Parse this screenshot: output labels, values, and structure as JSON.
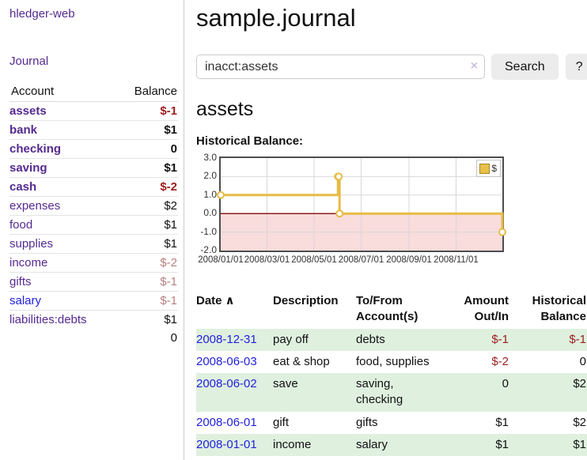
{
  "app": {
    "brand": "hledger-web"
  },
  "sidebar": {
    "nav": [
      {
        "label": "Journal"
      }
    ],
    "table_headers": {
      "account": "Account",
      "balance": "Balance"
    },
    "accounts": [
      {
        "label": "assets",
        "level": 1,
        "bold": true,
        "link": "purple",
        "balance": "$-1",
        "balance_style": "negative"
      },
      {
        "label": "bank",
        "level": 2,
        "bold": true,
        "link": "purple",
        "balance": "$1",
        "balance_style": "normal"
      },
      {
        "label": "checking",
        "level": 3,
        "bold": true,
        "link": "purple",
        "balance": "0",
        "balance_style": "normal"
      },
      {
        "label": "saving",
        "level": 3,
        "bold": true,
        "link": "purple",
        "balance": "$1",
        "balance_style": "normal"
      },
      {
        "label": "cash",
        "level": 2,
        "bold": true,
        "link": "purple",
        "balance": "$-2",
        "balance_style": "negative"
      },
      {
        "label": "expenses",
        "level": 1,
        "bold": false,
        "link": "purple",
        "balance": "$2",
        "balance_style": "normal"
      },
      {
        "label": "food",
        "level": 2,
        "bold": false,
        "link": "purple",
        "balance": "$1",
        "balance_style": "normal"
      },
      {
        "label": "supplies",
        "level": 2,
        "bold": false,
        "link": "purple",
        "balance": "$1",
        "balance_style": "normal"
      },
      {
        "label": "income",
        "level": 1,
        "bold": false,
        "link": "purple",
        "balance": "$-2",
        "balance_style": "muted"
      },
      {
        "label": "gifts",
        "level": 2,
        "bold": false,
        "link": "purple",
        "balance": "$-1",
        "balance_style": "muted"
      },
      {
        "label": "salary",
        "level": 2,
        "bold": false,
        "link": "blue",
        "balance": "$-1",
        "balance_style": "muted"
      },
      {
        "label": "liabilities:debts",
        "level": 1,
        "bold": false,
        "link": "purple",
        "balance": "$1",
        "balance_style": "normal"
      }
    ],
    "total": "0"
  },
  "header": {
    "title": "sample.journal"
  },
  "search": {
    "query": "inacct:assets",
    "clear_icon": "×",
    "button_label": "Search",
    "help_label": "?"
  },
  "account_page": {
    "heading": "assets",
    "section_label": "Historical Balance:"
  },
  "chart_data": {
    "type": "line",
    "style": "step",
    "title": "Historical Balance",
    "legend": [
      {
        "name": "$",
        "color": "#e8c04a"
      }
    ],
    "legend_position": "top-right",
    "grid": true,
    "x_range": [
      "2008-01-01",
      "2008-12-31"
    ],
    "ylim": [
      -2,
      3
    ],
    "yticks": [
      3,
      2,
      1,
      0,
      -1,
      -2
    ],
    "xticks": [
      "2008/01/01",
      "2008/03/01",
      "2008/05/01",
      "2008/07/01",
      "2008/09/01",
      "2008/11/01"
    ],
    "series": [
      {
        "name": "$",
        "points": [
          {
            "x": "2008-01-01",
            "y": 1
          },
          {
            "x": "2008-06-01",
            "y": 2
          },
          {
            "x": "2008-06-02",
            "y": 2
          },
          {
            "x": "2008-06-03",
            "y": 0
          },
          {
            "x": "2008-12-31",
            "y": -1
          }
        ]
      }
    ],
    "line_color": "#e6bc45",
    "marker_fill": "#ffffff",
    "zero_line_color": "#8f1a1a",
    "negative_region_color": "#f9dcdc",
    "grid_color": "#d8d8d8"
  },
  "register": {
    "headers": [
      {
        "label": "Date",
        "sort_icon": "∧"
      },
      {
        "label": "Description"
      },
      {
        "label": "To/From Account(s)"
      },
      {
        "label": "Amount Out/In"
      },
      {
        "label": "Historical Balance"
      }
    ],
    "rows": [
      {
        "date": "2008-12-31",
        "description": "pay off",
        "accounts": "debts",
        "amount": "$-1",
        "amount_negative": true,
        "balance": "$-1",
        "balance_negative": true,
        "shaded": true
      },
      {
        "date": "2008-06-03",
        "description": "eat & shop",
        "accounts": "food, supplies",
        "amount": "$-2",
        "amount_negative": true,
        "balance": "0",
        "balance_negative": false,
        "shaded": false
      },
      {
        "date": "2008-06-02",
        "description": "save",
        "accounts": "saving, checking",
        "amount": "0",
        "amount_negative": false,
        "balance": "$2",
        "balance_negative": false,
        "shaded": true
      },
      {
        "date": "2008-06-01",
        "description": "gift",
        "accounts": "gifts",
        "amount": "$1",
        "amount_negative": false,
        "balance": "$2",
        "balance_negative": false,
        "shaded": false
      },
      {
        "date": "2008-01-01",
        "description": "income",
        "accounts": "salary",
        "amount": "$1",
        "amount_negative": false,
        "balance": "$1",
        "balance_negative": false,
        "shaded": true
      }
    ]
  },
  "colors": {
    "purple": "#552a90",
    "blue": "#2222dd",
    "negative": "#9d1e1e",
    "muted_negative": "#b97f7f",
    "row_green": "#dff0df",
    "accent_gold": "#e6bc45"
  }
}
